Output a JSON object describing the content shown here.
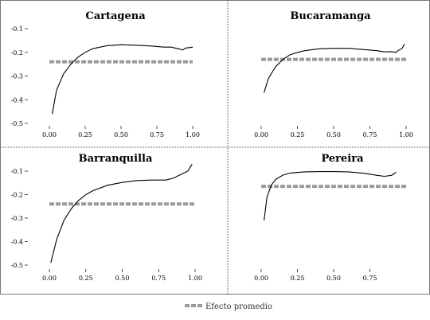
{
  "chart_data": [
    {
      "type": "line",
      "title": "Cartagena",
      "xlim": [
        0,
        1
      ],
      "ylim": [
        -0.5,
        -0.1
      ],
      "xticks": [
        "0.00",
        "0.25",
        "0.50",
        "0.75",
        "1.00"
      ],
      "yticks": [
        "-0.1",
        "-0.2",
        "-0.3",
        "-0.4",
        "-0.5"
      ],
      "average": -0.24,
      "series": [
        {
          "x": [
            0.02,
            0.05,
            0.1,
            0.15,
            0.2,
            0.25,
            0.3,
            0.4,
            0.5,
            0.6,
            0.7,
            0.8,
            0.85,
            0.9,
            0.93,
            0.95,
            1.0
          ],
          "y": [
            -0.46,
            -0.36,
            -0.29,
            -0.25,
            -0.22,
            -0.2,
            -0.185,
            -0.172,
            -0.168,
            -0.17,
            -0.173,
            -0.178,
            -0.178,
            -0.185,
            -0.19,
            -0.182,
            -0.178
          ]
        }
      ]
    },
    {
      "type": "line",
      "title": "Bucaramanga",
      "xlim": [
        0,
        1
      ],
      "ylim": [
        -0.5,
        -0.1
      ],
      "xticks": [
        "0.00",
        "0.25",
        "0.50",
        "0.75",
        "1.00"
      ],
      "yticks": [],
      "average": -0.23,
      "series": [
        {
          "x": [
            0.02,
            0.05,
            0.1,
            0.15,
            0.2,
            0.25,
            0.3,
            0.4,
            0.5,
            0.6,
            0.7,
            0.8,
            0.85,
            0.9,
            0.93,
            0.95,
            0.97,
            0.99
          ],
          "y": [
            -0.37,
            -0.31,
            -0.26,
            -0.23,
            -0.21,
            -0.2,
            -0.193,
            -0.185,
            -0.183,
            -0.183,
            -0.188,
            -0.193,
            -0.198,
            -0.197,
            -0.2,
            -0.19,
            -0.185,
            -0.165
          ]
        }
      ]
    },
    {
      "type": "line",
      "title": "Barranquilla",
      "xlim": [
        0,
        1
      ],
      "ylim": [
        -0.5,
        -0.1
      ],
      "xticks": [
        "0.00",
        "0.25",
        "0.50",
        "0.75",
        "1.00"
      ],
      "yticks": [
        "-0.1",
        "-0.2",
        "-0.3",
        "-0.4",
        "-0.5"
      ],
      "average": -0.24,
      "series": [
        {
          "x": [
            0.01,
            0.05,
            0.1,
            0.15,
            0.2,
            0.25,
            0.3,
            0.4,
            0.5,
            0.6,
            0.7,
            0.8,
            0.85,
            0.9,
            0.95,
            0.98
          ],
          "y": [
            -0.49,
            -0.39,
            -0.31,
            -0.26,
            -0.225,
            -0.2,
            -0.183,
            -0.16,
            -0.148,
            -0.14,
            -0.138,
            -0.138,
            -0.13,
            -0.115,
            -0.1,
            -0.07
          ]
        }
      ]
    },
    {
      "type": "line",
      "title": "Pereira",
      "xlim": [
        0,
        1
      ],
      "ylim": [
        -0.5,
        -0.1
      ],
      "xticks": [
        "0.00",
        "0.25",
        "0.50",
        "0.75"
      ],
      "yticks": [],
      "average": -0.165,
      "series": [
        {
          "x": [
            0.02,
            0.04,
            0.07,
            0.1,
            0.15,
            0.2,
            0.3,
            0.4,
            0.5,
            0.6,
            0.7,
            0.75,
            0.8,
            0.85,
            0.9,
            0.93
          ],
          "y": [
            -0.31,
            -0.21,
            -0.16,
            -0.135,
            -0.117,
            -0.108,
            -0.103,
            -0.102,
            -0.102,
            -0.103,
            -0.108,
            -0.113,
            -0.118,
            -0.122,
            -0.118,
            -0.105
          ]
        }
      ]
    }
  ],
  "legend": {
    "label": "Efecto promedio"
  }
}
